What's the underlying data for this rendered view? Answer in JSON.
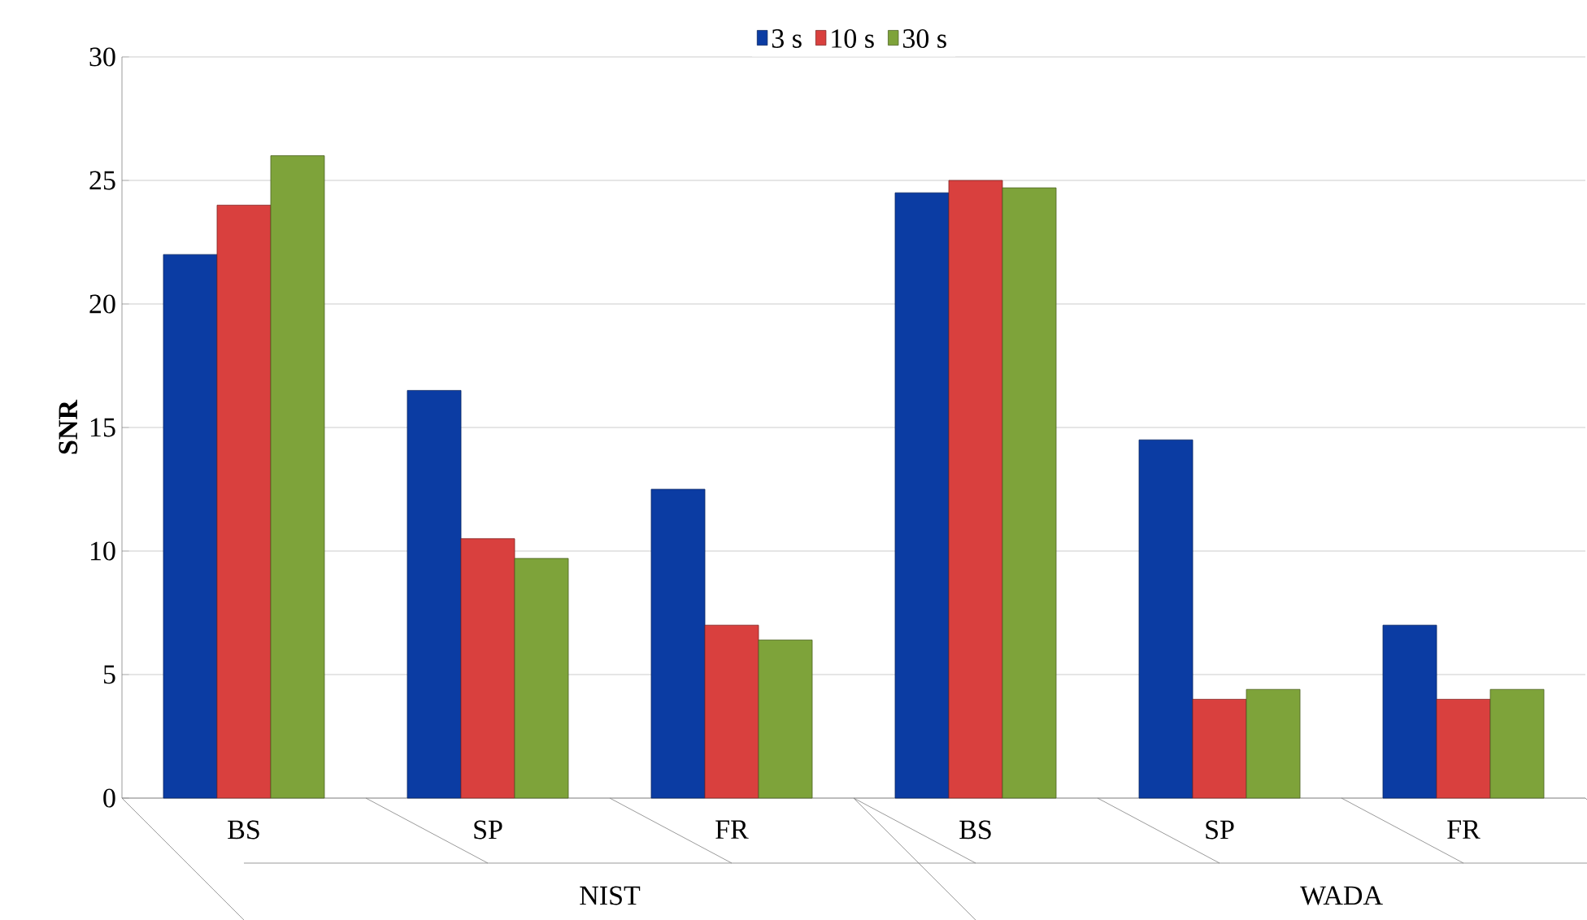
{
  "chart_data": {
    "type": "bar",
    "ylabel": "SNR",
    "categories": [
      "BS",
      "SP",
      "FR",
      "BS",
      "SP",
      "FR"
    ],
    "annotations": [
      "NIST",
      "WADA"
    ],
    "ylim": [
      0,
      30
    ],
    "yticks": [
      0,
      5,
      10,
      15,
      20,
      25,
      30
    ],
    "grid": "y",
    "legend": "top",
    "series": [
      {
        "name": "3 s",
        "color": "#0b3ca3",
        "values": [
          22,
          16.5,
          12.5,
          24.5,
          14.5,
          7
        ]
      },
      {
        "name": "10 s",
        "color": "#d9403e",
        "values": [
          24,
          10.5,
          7,
          25,
          4,
          4
        ]
      },
      {
        "name": "30 s",
        "color": "#7ea33a",
        "values": [
          26,
          9.7,
          6.4,
          24.7,
          4.4,
          4.4
        ]
      }
    ]
  }
}
